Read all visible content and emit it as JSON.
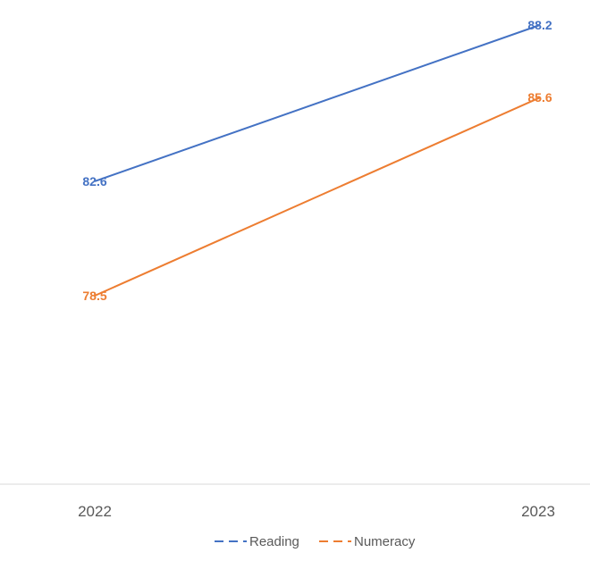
{
  "chart_data": {
    "type": "line",
    "title": "",
    "xlabel": "",
    "ylabel": "",
    "categories": [
      "2022",
      "2023"
    ],
    "ylim": [
      60,
      90
    ],
    "grid": false,
    "legend_position": "bottom",
    "series": [
      {
        "name": "Reading",
        "values": [
          82.6,
          88.2
        ],
        "labels": [
          "82.6",
          "88.2"
        ],
        "color": "#4472C4"
      },
      {
        "name": "Numeracy",
        "values": [
          78.5,
          85.6
        ],
        "labels": [
          "78.5",
          "85.6"
        ],
        "color": "#ED7D31"
      }
    ],
    "axis_color": "#D9D9D9"
  }
}
